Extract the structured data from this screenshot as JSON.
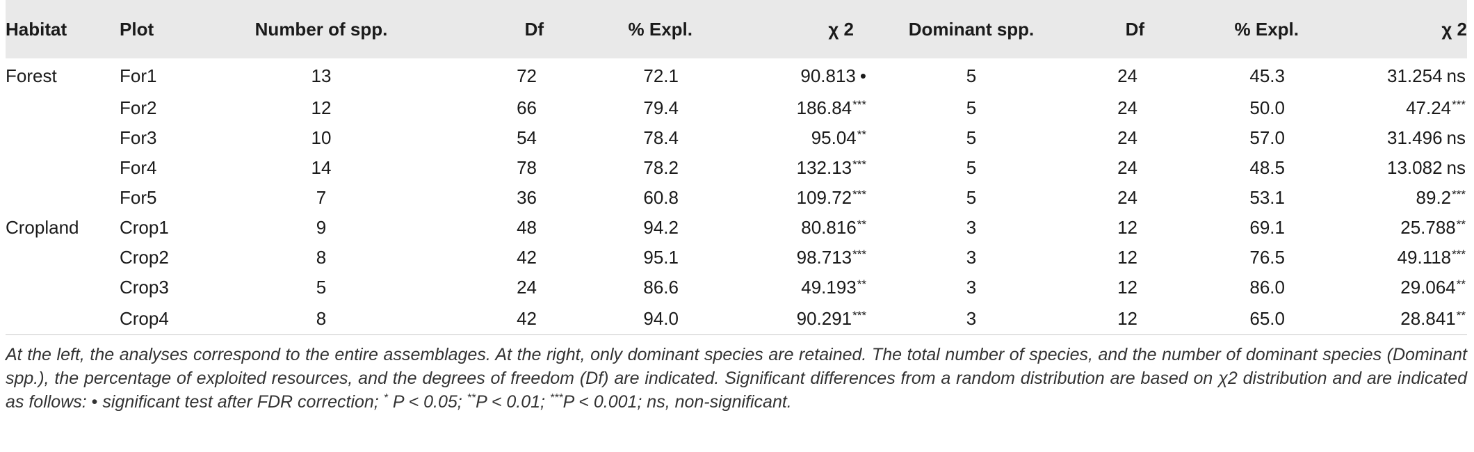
{
  "table": {
    "columns": [
      "Habitat",
      "Plot",
      "Number of spp.",
      "Df",
      "% Expl.",
      "χ 2",
      "Dominant spp.",
      "Df",
      "% Expl.",
      "χ 2"
    ],
    "rows": [
      {
        "habitat": "Forest",
        "plot": "For1",
        "n_spp": "13",
        "df": "72",
        "expl": "72.1",
        "chi": "90.813",
        "chi_sig": "•",
        "dom": "5",
        "df2": "24",
        "expl2": "45.3",
        "chi2": "31.254",
        "chi2_sig": "ns"
      },
      {
        "habitat": "",
        "plot": "For2",
        "n_spp": "12",
        "df": "66",
        "expl": "79.4",
        "chi": "186.84",
        "chi_sig": "***",
        "dom": "5",
        "df2": "24",
        "expl2": "50.0",
        "chi2": "47.24",
        "chi2_sig": "***"
      },
      {
        "habitat": "",
        "plot": "For3",
        "n_spp": "10",
        "df": "54",
        "expl": "78.4",
        "chi": "95.04",
        "chi_sig": "**",
        "dom": "5",
        "df2": "24",
        "expl2": "57.0",
        "chi2": "31.496",
        "chi2_sig": "ns"
      },
      {
        "habitat": "",
        "plot": "For4",
        "n_spp": "14",
        "df": "78",
        "expl": "78.2",
        "chi": "132.13",
        "chi_sig": "***",
        "dom": "5",
        "df2": "24",
        "expl2": "48.5",
        "chi2": "13.082",
        "chi2_sig": "ns"
      },
      {
        "habitat": "",
        "plot": "For5",
        "n_spp": "7",
        "df": "36",
        "expl": "60.8",
        "chi": "109.72",
        "chi_sig": "***",
        "dom": "5",
        "df2": "24",
        "expl2": "53.1",
        "chi2": "89.2",
        "chi2_sig": "***"
      },
      {
        "habitat": "Cropland",
        "plot": "Crop1",
        "n_spp": "9",
        "df": "48",
        "expl": "94.2",
        "chi": "80.816",
        "chi_sig": "**",
        "dom": "3",
        "df2": "12",
        "expl2": "69.1",
        "chi2": "25.788",
        "chi2_sig": "**"
      },
      {
        "habitat": "",
        "plot": "Crop2",
        "n_spp": "8",
        "df": "42",
        "expl": "95.1",
        "chi": "98.713",
        "chi_sig": "***",
        "dom": "3",
        "df2": "12",
        "expl2": "76.5",
        "chi2": "49.118",
        "chi2_sig": "***"
      },
      {
        "habitat": "",
        "plot": "Crop3",
        "n_spp": "5",
        "df": "24",
        "expl": "86.6",
        "chi": "49.193",
        "chi_sig": "**",
        "dom": "3",
        "df2": "12",
        "expl2": "86.0",
        "chi2": "29.064",
        "chi2_sig": "**"
      },
      {
        "habitat": "",
        "plot": "Crop4",
        "n_spp": "8",
        "df": "42",
        "expl": "94.0",
        "chi": "90.291",
        "chi_sig": "***",
        "dom": "3",
        "df2": "12",
        "expl2": "65.0",
        "chi2": "28.841",
        "chi2_sig": "**"
      }
    ]
  },
  "caption": {
    "p1": "At the left, the analyses correspond to the entire assemblages. At the right, only dominant species are retained. The total number of species, and the number of dominant species (Dominant spp.), the percentage of exploited resources, and the degrees of freedom (Df) are indicated. Significant differences from a random distribution are based on χ2 distribution and are indicated as follows: ",
    "bullet": "•",
    "p2": " significant test after FDR correction; ",
    "sup1": "*",
    "p3": " P < 0.05; ",
    "sup2": "**",
    "p4": "P < 0.01; ",
    "sup3": "***",
    "p5": "P < 0.001; ns, non-significant."
  }
}
